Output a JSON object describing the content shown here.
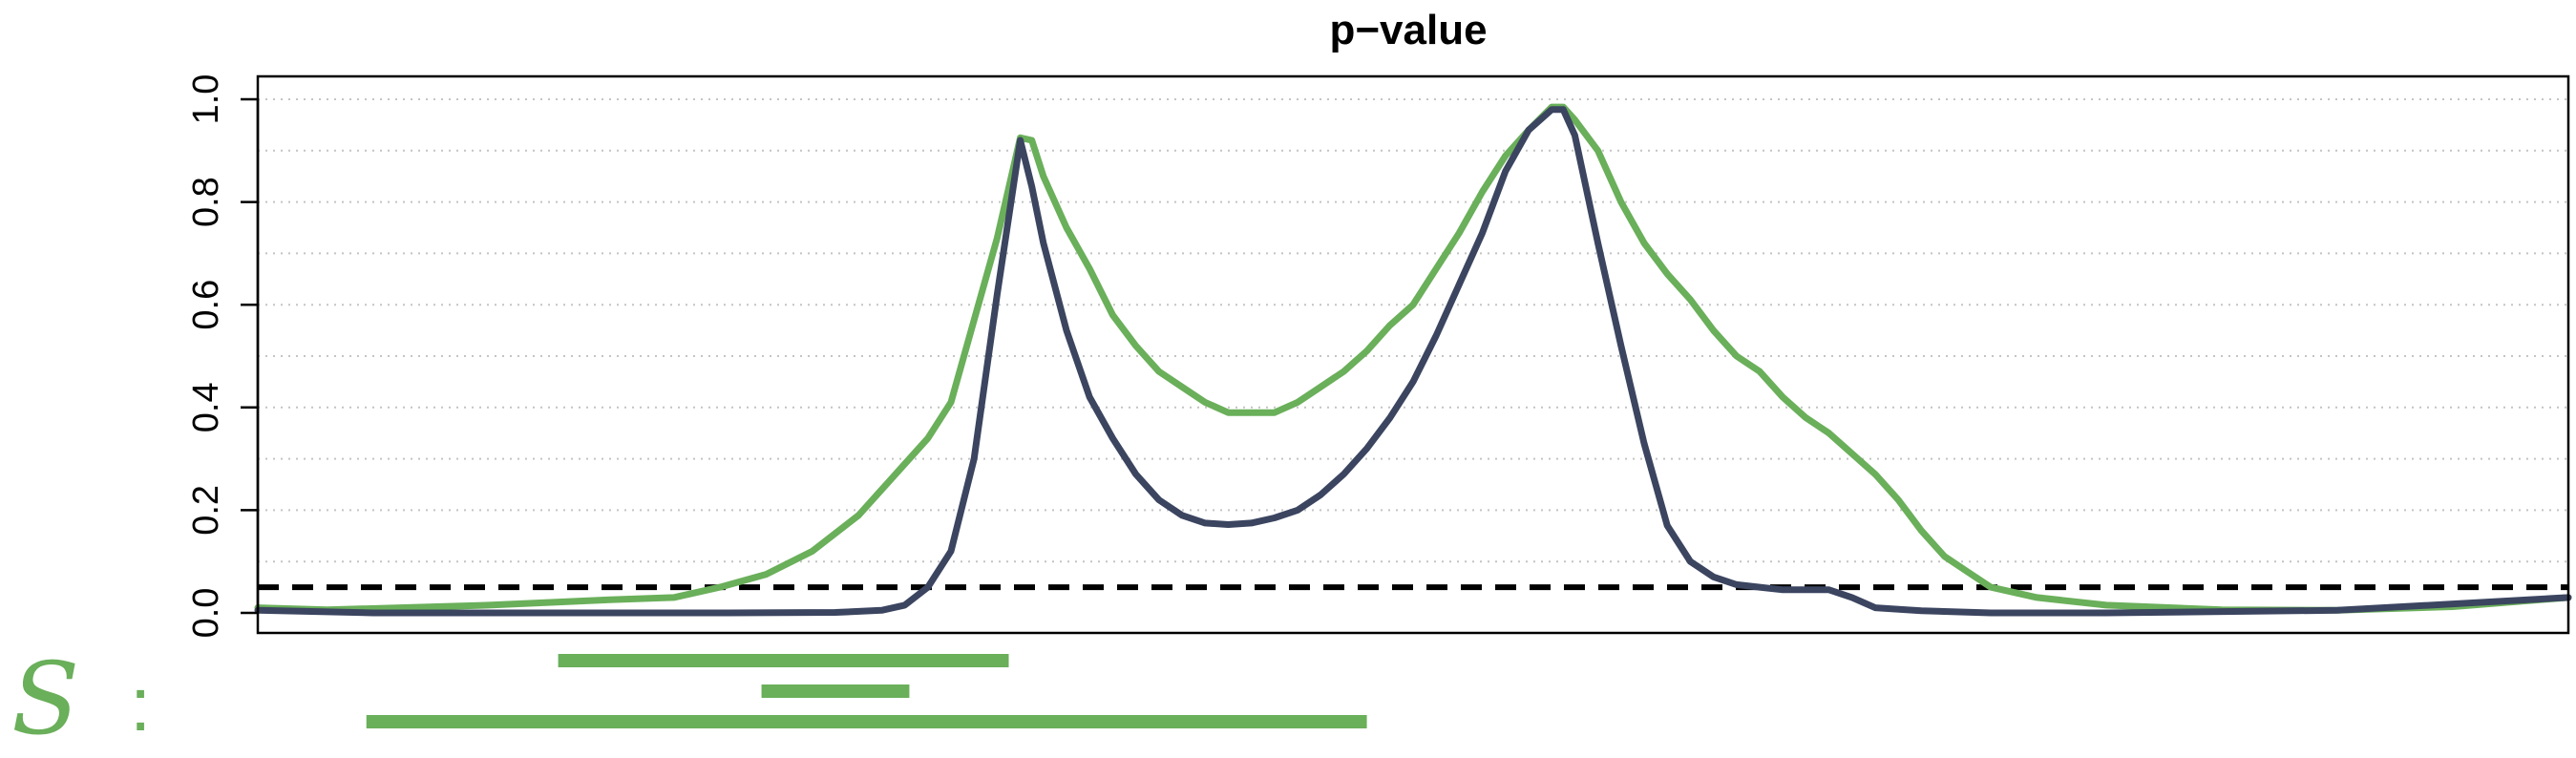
{
  "chart_data": {
    "type": "line",
    "title": "p−value",
    "xlabel": "",
    "ylabel": "",
    "ylim": [
      0,
      1.0
    ],
    "xlim": [
      0,
      1
    ],
    "yticks": [
      "0.0",
      "0.2",
      "0.4",
      "0.6",
      "0.8",
      "1.0"
    ],
    "ytick_values": [
      0,
      0.2,
      0.4,
      0.6,
      0.8,
      1.0
    ],
    "grid": "horizontal-dotted",
    "grid_values": [
      0.1,
      0.2,
      0.3,
      0.4,
      0.5,
      0.6,
      0.7,
      0.8,
      0.9,
      1.0
    ],
    "threshold": {
      "value": 0.05,
      "style": "dashed",
      "color": "#000000"
    },
    "series": [
      {
        "color": "#6aaf5a",
        "x": [
          0,
          0.03,
          0.1,
          0.15,
          0.18,
          0.2,
          0.22,
          0.24,
          0.26,
          0.27,
          0.28,
          0.29,
          0.3,
          0.31,
          0.32,
          0.33,
          0.335,
          0.34,
          0.35,
          0.36,
          0.37,
          0.38,
          0.39,
          0.4,
          0.41,
          0.42,
          0.43,
          0.44,
          0.45,
          0.46,
          0.47,
          0.48,
          0.49,
          0.5,
          0.51,
          0.52,
          0.53,
          0.54,
          0.55,
          0.56,
          0.565,
          0.57,
          0.58,
          0.59,
          0.6,
          0.61,
          0.62,
          0.63,
          0.64,
          0.65,
          0.66,
          0.67,
          0.68,
          0.69,
          0.7,
          0.71,
          0.72,
          0.73,
          0.74,
          0.75,
          0.77,
          0.8,
          0.85,
          0.9,
          0.95,
          1.0
        ],
        "y": [
          0.01,
          0.006,
          0.015,
          0.025,
          0.03,
          0.05,
          0.075,
          0.12,
          0.19,
          0.24,
          0.29,
          0.34,
          0.41,
          0.57,
          0.73,
          0.925,
          0.92,
          0.85,
          0.75,
          0.67,
          0.58,
          0.52,
          0.47,
          0.44,
          0.41,
          0.39,
          0.39,
          0.39,
          0.41,
          0.44,
          0.47,
          0.51,
          0.56,
          0.6,
          0.67,
          0.74,
          0.82,
          0.89,
          0.94,
          0.985,
          0.985,
          0.96,
          0.9,
          0.8,
          0.72,
          0.66,
          0.61,
          0.55,
          0.5,
          0.47,
          0.42,
          0.38,
          0.35,
          0.31,
          0.27,
          0.22,
          0.16,
          0.11,
          0.08,
          0.05,
          0.03,
          0.015,
          0.006,
          0.005,
          0.012,
          0.03
        ]
      },
      {
        "color": "#3b4560",
        "x": [
          0,
          0.05,
          0.1,
          0.2,
          0.25,
          0.27,
          0.28,
          0.29,
          0.3,
          0.31,
          0.32,
          0.33,
          0.335,
          0.34,
          0.35,
          0.36,
          0.37,
          0.38,
          0.39,
          0.4,
          0.41,
          0.42,
          0.43,
          0.44,
          0.45,
          0.46,
          0.47,
          0.48,
          0.49,
          0.5,
          0.51,
          0.52,
          0.53,
          0.54,
          0.55,
          0.56,
          0.565,
          0.57,
          0.58,
          0.59,
          0.6,
          0.61,
          0.62,
          0.63,
          0.64,
          0.65,
          0.66,
          0.67,
          0.68,
          0.69,
          0.7,
          0.72,
          0.75,
          0.8,
          0.9,
          1.0
        ],
        "y": [
          0.005,
          0.0,
          0.0,
          0.0,
          0.001,
          0.005,
          0.015,
          0.05,
          0.12,
          0.3,
          0.62,
          0.92,
          0.83,
          0.72,
          0.55,
          0.42,
          0.34,
          0.27,
          0.22,
          0.19,
          0.175,
          0.172,
          0.175,
          0.185,
          0.2,
          0.23,
          0.27,
          0.32,
          0.38,
          0.45,
          0.54,
          0.64,
          0.74,
          0.86,
          0.94,
          0.98,
          0.98,
          0.93,
          0.72,
          0.52,
          0.33,
          0.17,
          0.1,
          0.07,
          0.055,
          0.05,
          0.045,
          0.045,
          0.045,
          0.03,
          0.01,
          0.004,
          0.0,
          0.0,
          0.005,
          0.03
        ]
      }
    ],
    "segments": {
      "label": "S",
      "separator": ":",
      "color": "#6aaf5a",
      "items": [
        {
          "start": 0.13,
          "end": 0.325
        },
        {
          "start": 0.218,
          "end": 0.282
        },
        {
          "start": 0.047,
          "end": 0.48
        }
      ]
    }
  }
}
